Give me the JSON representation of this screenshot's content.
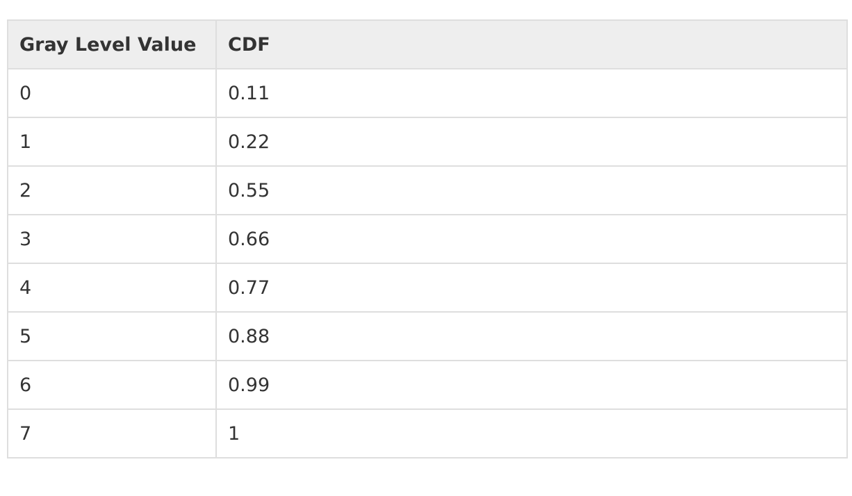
{
  "table": {
    "headers": [
      "Gray Level Value",
      "CDF"
    ],
    "rows": [
      [
        "0",
        "0.11"
      ],
      [
        "1",
        "0.22"
      ],
      [
        "2",
        "0.55"
      ],
      [
        "3",
        "0.66"
      ],
      [
        "4",
        "0.77"
      ],
      [
        "5",
        "0.88"
      ],
      [
        "6",
        "0.99"
      ],
      [
        "7",
        "1"
      ]
    ]
  },
  "chart_data": {
    "type": "table",
    "columns": [
      "Gray Level Value",
      "CDF"
    ],
    "x": [
      0,
      1,
      2,
      3,
      4,
      5,
      6,
      7
    ],
    "values": [
      0.11,
      0.22,
      0.55,
      0.66,
      0.77,
      0.88,
      0.99,
      1
    ]
  },
  "colors": {
    "header_background": "#eeeeee",
    "border": "#dedede",
    "text": "#333333"
  }
}
